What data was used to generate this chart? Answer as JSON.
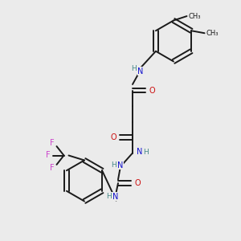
{
  "background_color": "#ebebeb",
  "bond_color": "#1a1a1a",
  "N_color": "#1010cc",
  "O_color": "#cc1010",
  "F_color": "#cc44cc",
  "H_color": "#448888",
  "figsize": [
    3.0,
    3.0
  ],
  "dpi": 100,
  "xlim": [
    0,
    10
  ],
  "ylim": [
    0,
    10
  ]
}
